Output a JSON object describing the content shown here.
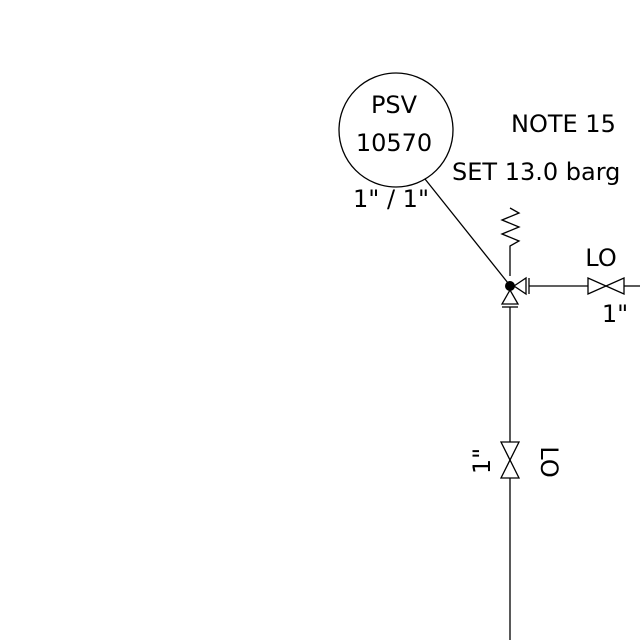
{
  "instrument": {
    "tag_type": "PSV",
    "tag_number": "10570",
    "size": "1\" / 1\""
  },
  "note": "NOTE 15",
  "set_pressure": "SET 13.0 barg",
  "outlet_valve": {
    "position": "LO",
    "size": "1\""
  },
  "inlet_valve": {
    "position": "LO",
    "size": "1\""
  }
}
